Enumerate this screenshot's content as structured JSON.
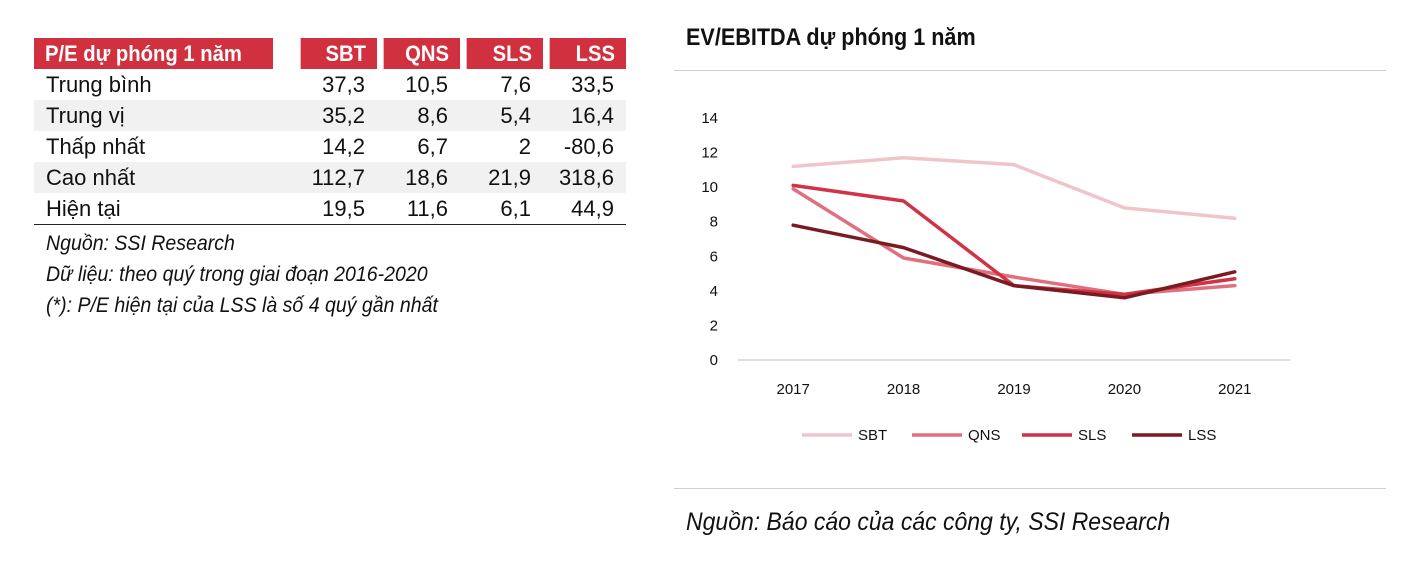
{
  "table": {
    "header": [
      "P/E dự phóng 1 năm",
      "SBT",
      "QNS",
      "SLS",
      "LSS"
    ],
    "rows": [
      [
        "Trung bình",
        "37,3",
        "10,5",
        "7,6",
        "33,5"
      ],
      [
        "Trung vị",
        "35,2",
        "8,6",
        "5,4",
        "16,4"
      ],
      [
        "Thấp nhất",
        "14,2",
        "6,7",
        "2",
        "-80,6"
      ],
      [
        "Cao nhất",
        "112,7",
        "18,6",
        "21,9",
        "318,6"
      ],
      [
        "Hiện tại",
        "19,5",
        "11,6",
        "6,1",
        "44,9"
      ]
    ],
    "header_color": "#d1303f"
  },
  "notes": [
    "Nguồn: SSI Research",
    "Dữ liệu: theo quý trong giai đoạn 2016-2020",
    "(*): P/E hiện tại của LSS là số 4 quý gần nhất"
  ],
  "chart_data": {
    "type": "line",
    "title": "EV/EBITDA dự phóng 1 năm",
    "categories": [
      "2017",
      "2018",
      "2019",
      "2020",
      "2021"
    ],
    "y_ticks": [
      "0",
      "2",
      "4",
      "6",
      "8",
      "10",
      "12",
      "14"
    ],
    "ylim": [
      0,
      14
    ],
    "xlabel": "",
    "ylabel": "",
    "legend_position": "bottom",
    "series": [
      {
        "name": "SBT",
        "values": [
          11.2,
          11.7,
          11.3,
          8.8,
          8.2
        ],
        "color": "#f0c4cb"
      },
      {
        "name": "QNS",
        "values": [
          9.9,
          5.9,
          4.8,
          3.8,
          4.3
        ],
        "color": "#e0707e"
      },
      {
        "name": "SLS",
        "values": [
          10.1,
          9.2,
          4.3,
          3.8,
          4.7
        ],
        "color": "#cf3345"
      },
      {
        "name": "LSS",
        "values": [
          7.8,
          6.5,
          4.3,
          3.6,
          5.1
        ],
        "color": "#7a1a22"
      }
    ]
  },
  "source": "Nguồn: Báo cáo của các công ty, SSI Research"
}
